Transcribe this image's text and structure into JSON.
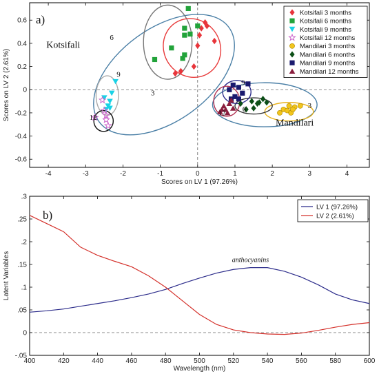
{
  "chart_data": [
    {
      "type": "scatter",
      "panel_label": "a)",
      "xlabel": "Scores on LV 1 (97.26%)",
      "ylabel": "Scores on LV 2 (2.61%)",
      "xlim": [
        -4.5,
        4.6
      ],
      "ylim": [
        -0.67,
        0.75
      ],
      "xticks": [
        -4,
        -3,
        -2,
        -1,
        0,
        1,
        2,
        3,
        4
      ],
      "yticks": [
        -0.6,
        -0.4,
        -0.2,
        0,
        0.2,
        0.4,
        0.6
      ],
      "reference_lines": {
        "x": 0,
        "y": 0
      },
      "legend_position": "top-right",
      "annotations": [
        {
          "text": "Kotsifali",
          "x": -3.6,
          "y": 0.36
        },
        {
          "text": "Mandilari",
          "x": 2.6,
          "y": -0.31
        },
        {
          "text": "6",
          "x": -2.3,
          "y": 0.43
        },
        {
          "text": "3",
          "x": -1.2,
          "y": -0.05
        },
        {
          "text": "9",
          "x": -2.12,
          "y": 0.11
        },
        {
          "text": "12",
          "x": -2.8,
          "y": -0.26
        },
        {
          "text": "9",
          "x": 1.22,
          "y": 0.04
        },
        {
          "text": "12",
          "x": 0.65,
          "y": -0.22
        },
        {
          "text": "6",
          "x": 1.25,
          "y": -0.19
        },
        {
          "text": "3",
          "x": 3.0,
          "y": -0.16
        }
      ],
      "series": [
        {
          "name": "Kotsifali 3 months",
          "marker": "diamond",
          "color": "#e8353b",
          "points": [
            [
              -0.6,
              0.14
            ],
            [
              -0.45,
              0.16
            ],
            [
              -0.1,
              0.2
            ],
            [
              0.0,
              0.38
            ],
            [
              0.05,
              0.47
            ],
            [
              0.2,
              0.58
            ],
            [
              0.45,
              0.42
            ],
            [
              0.25,
              0.55
            ],
            [
              0.1,
              0.53
            ]
          ]
        },
        {
          "name": "Kotsifali 6 months",
          "marker": "square",
          "color": "#22a33a",
          "points": [
            [
              -1.15,
              0.26
            ],
            [
              -0.7,
              0.36
            ],
            [
              -0.4,
              0.27
            ],
            [
              -0.35,
              0.3
            ],
            [
              -0.35,
              0.47
            ],
            [
              -0.2,
              0.48
            ],
            [
              -0.25,
              0.7
            ],
            [
              0.0,
              0.55
            ],
            [
              -0.35,
              0.53
            ]
          ]
        },
        {
          "name": "Kotsifali 9 months",
          "marker": "triangle-down",
          "color": "#19d2e6",
          "points": [
            [
              -2.2,
              0.07
            ],
            [
              -2.3,
              -0.03
            ],
            [
              -2.35,
              -0.1
            ],
            [
              -2.5,
              -0.07
            ],
            [
              -2.4,
              -0.14
            ],
            [
              -2.45,
              -0.17
            ],
            [
              -2.35,
              -0.16
            ]
          ]
        },
        {
          "name": "Kotsifali 12 months",
          "marker": "star",
          "color": "#cc66cc",
          "points": [
            [
              -2.75,
              -0.24
            ],
            [
              -2.5,
              -0.18
            ],
            [
              -2.45,
              -0.26
            ],
            [
              -2.55,
              -0.09
            ],
            [
              -2.4,
              -0.31
            ],
            [
              -2.45,
              -0.22
            ]
          ]
        },
        {
          "name": "Mandilari 3 months",
          "marker": "circle",
          "color": "#f2c51c",
          "points": [
            [
              2.2,
              -0.2
            ],
            [
              2.3,
              -0.17
            ],
            [
              2.4,
              -0.18
            ],
            [
              2.5,
              -0.2
            ],
            [
              2.45,
              -0.14
            ],
            [
              2.6,
              -0.15
            ],
            [
              2.75,
              -0.14
            ],
            [
              2.55,
              -0.17
            ]
          ]
        },
        {
          "name": "Mandilari 6 months",
          "marker": "diamond",
          "color": "#0c4f17",
          "points": [
            [
              1.15,
              -0.12
            ],
            [
              1.3,
              -0.17
            ],
            [
              1.5,
              -0.16
            ],
            [
              1.65,
              -0.11
            ],
            [
              1.75,
              -0.08
            ],
            [
              1.85,
              -0.11
            ],
            [
              1.6,
              -0.12
            ],
            [
              1.45,
              -0.1
            ]
          ]
        },
        {
          "name": "Mandilari 9 months",
          "marker": "square",
          "color": "#1a1a6e",
          "points": [
            [
              0.85,
              0.0
            ],
            [
              0.95,
              0.04
            ],
            [
              1.1,
              0.02
            ],
            [
              1.2,
              -0.03
            ],
            [
              1.35,
              0.05
            ],
            [
              1.0,
              -0.06
            ],
            [
              0.9,
              -0.08
            ],
            [
              1.1,
              -0.08
            ]
          ]
        },
        {
          "name": "Mandilari 12 months",
          "marker": "triangle-up",
          "color": "#8a1e3e",
          "points": [
            [
              0.6,
              -0.19
            ],
            [
              0.7,
              -0.14
            ],
            [
              0.75,
              -0.17
            ],
            [
              0.85,
              -0.12
            ],
            [
              0.9,
              -0.09
            ],
            [
              0.95,
              -0.16
            ],
            [
              0.65,
              -0.17
            ],
            [
              0.8,
              -0.2
            ]
          ]
        }
      ],
      "ellipses": [
        {
          "cx": -0.9,
          "cy": 0.13,
          "rx": 2.15,
          "ry": 0.4,
          "angle_deg": 36,
          "color": "#4a7fa6"
        },
        {
          "cx": -0.8,
          "cy": 0.41,
          "rx": 0.65,
          "ry": 0.32,
          "angle_deg": 0,
          "color": "#777777"
        },
        {
          "cx": -0.15,
          "cy": 0.36,
          "rx": 0.75,
          "ry": 0.26,
          "angle_deg": 36,
          "color": "#e83a3a"
        },
        {
          "cx": -2.42,
          "cy": -0.05,
          "rx": 0.3,
          "ry": 0.17,
          "angle_deg": 0,
          "color": "#aaaaaa"
        },
        {
          "cx": -2.52,
          "cy": -0.27,
          "rx": 0.26,
          "ry": 0.09,
          "angle_deg": 0,
          "color": "#111111"
        },
        {
          "cx": 1.8,
          "cy": -0.13,
          "rx": 1.4,
          "ry": 0.19,
          "angle_deg": 0,
          "color": "#4a7fa6"
        },
        {
          "cx": 2.45,
          "cy": -0.19,
          "rx": 0.65,
          "ry": 0.08,
          "angle_deg": 0,
          "color": "#e8b21c"
        },
        {
          "cx": 1.5,
          "cy": -0.14,
          "rx": 0.5,
          "ry": 0.07,
          "angle_deg": 0,
          "color": "#333333"
        },
        {
          "cx": 1.05,
          "cy": -0.02,
          "rx": 0.38,
          "ry": 0.1,
          "angle_deg": 0,
          "color": "#2b2b8a"
        },
        {
          "cx": 0.78,
          "cy": -0.1,
          "rx": 0.35,
          "ry": 0.13,
          "angle_deg": 0,
          "color": "#b03050"
        }
      ]
    },
    {
      "type": "line",
      "panel_label": "b)",
      "xlabel": "Wavelength (nm)",
      "ylabel": "Latent Variables",
      "xlim": [
        400,
        600
      ],
      "ylim": [
        -0.05,
        0.3
      ],
      "xticks": [
        400,
        420,
        440,
        460,
        480,
        500,
        520,
        540,
        560,
        580,
        600
      ],
      "yticks": [
        -0.05,
        0,
        0.05,
        0.1,
        0.15,
        0.2,
        0.25,
        0.3
      ],
      "reference_lines": {
        "y": 0
      },
      "legend_position": "top-right",
      "annotations": [
        {
          "text": "anthocyanins",
          "x": 530,
          "y": 0.155
        }
      ],
      "x": [
        400,
        410,
        420,
        430,
        440,
        450,
        460,
        470,
        480,
        490,
        500,
        510,
        520,
        530,
        540,
        550,
        560,
        570,
        580,
        590,
        600
      ],
      "series": [
        {
          "name": "LV 1 (97.26%)",
          "color": "#2b2b8a",
          "values": [
            0.045,
            0.048,
            0.052,
            0.058,
            0.064,
            0.07,
            0.077,
            0.085,
            0.095,
            0.108,
            0.12,
            0.131,
            0.139,
            0.143,
            0.143,
            0.135,
            0.122,
            0.105,
            0.085,
            0.072,
            0.064
          ]
        },
        {
          "name": "LV 2 (2.61%)",
          "color": "#d4302a",
          "values": [
            0.258,
            0.24,
            0.222,
            0.188,
            0.17,
            0.157,
            0.145,
            0.125,
            0.1,
            0.07,
            0.04,
            0.018,
            0.006,
            0.0,
            -0.003,
            -0.004,
            -0.001,
            0.005,
            0.012,
            0.018,
            0.022
          ]
        }
      ]
    }
  ]
}
